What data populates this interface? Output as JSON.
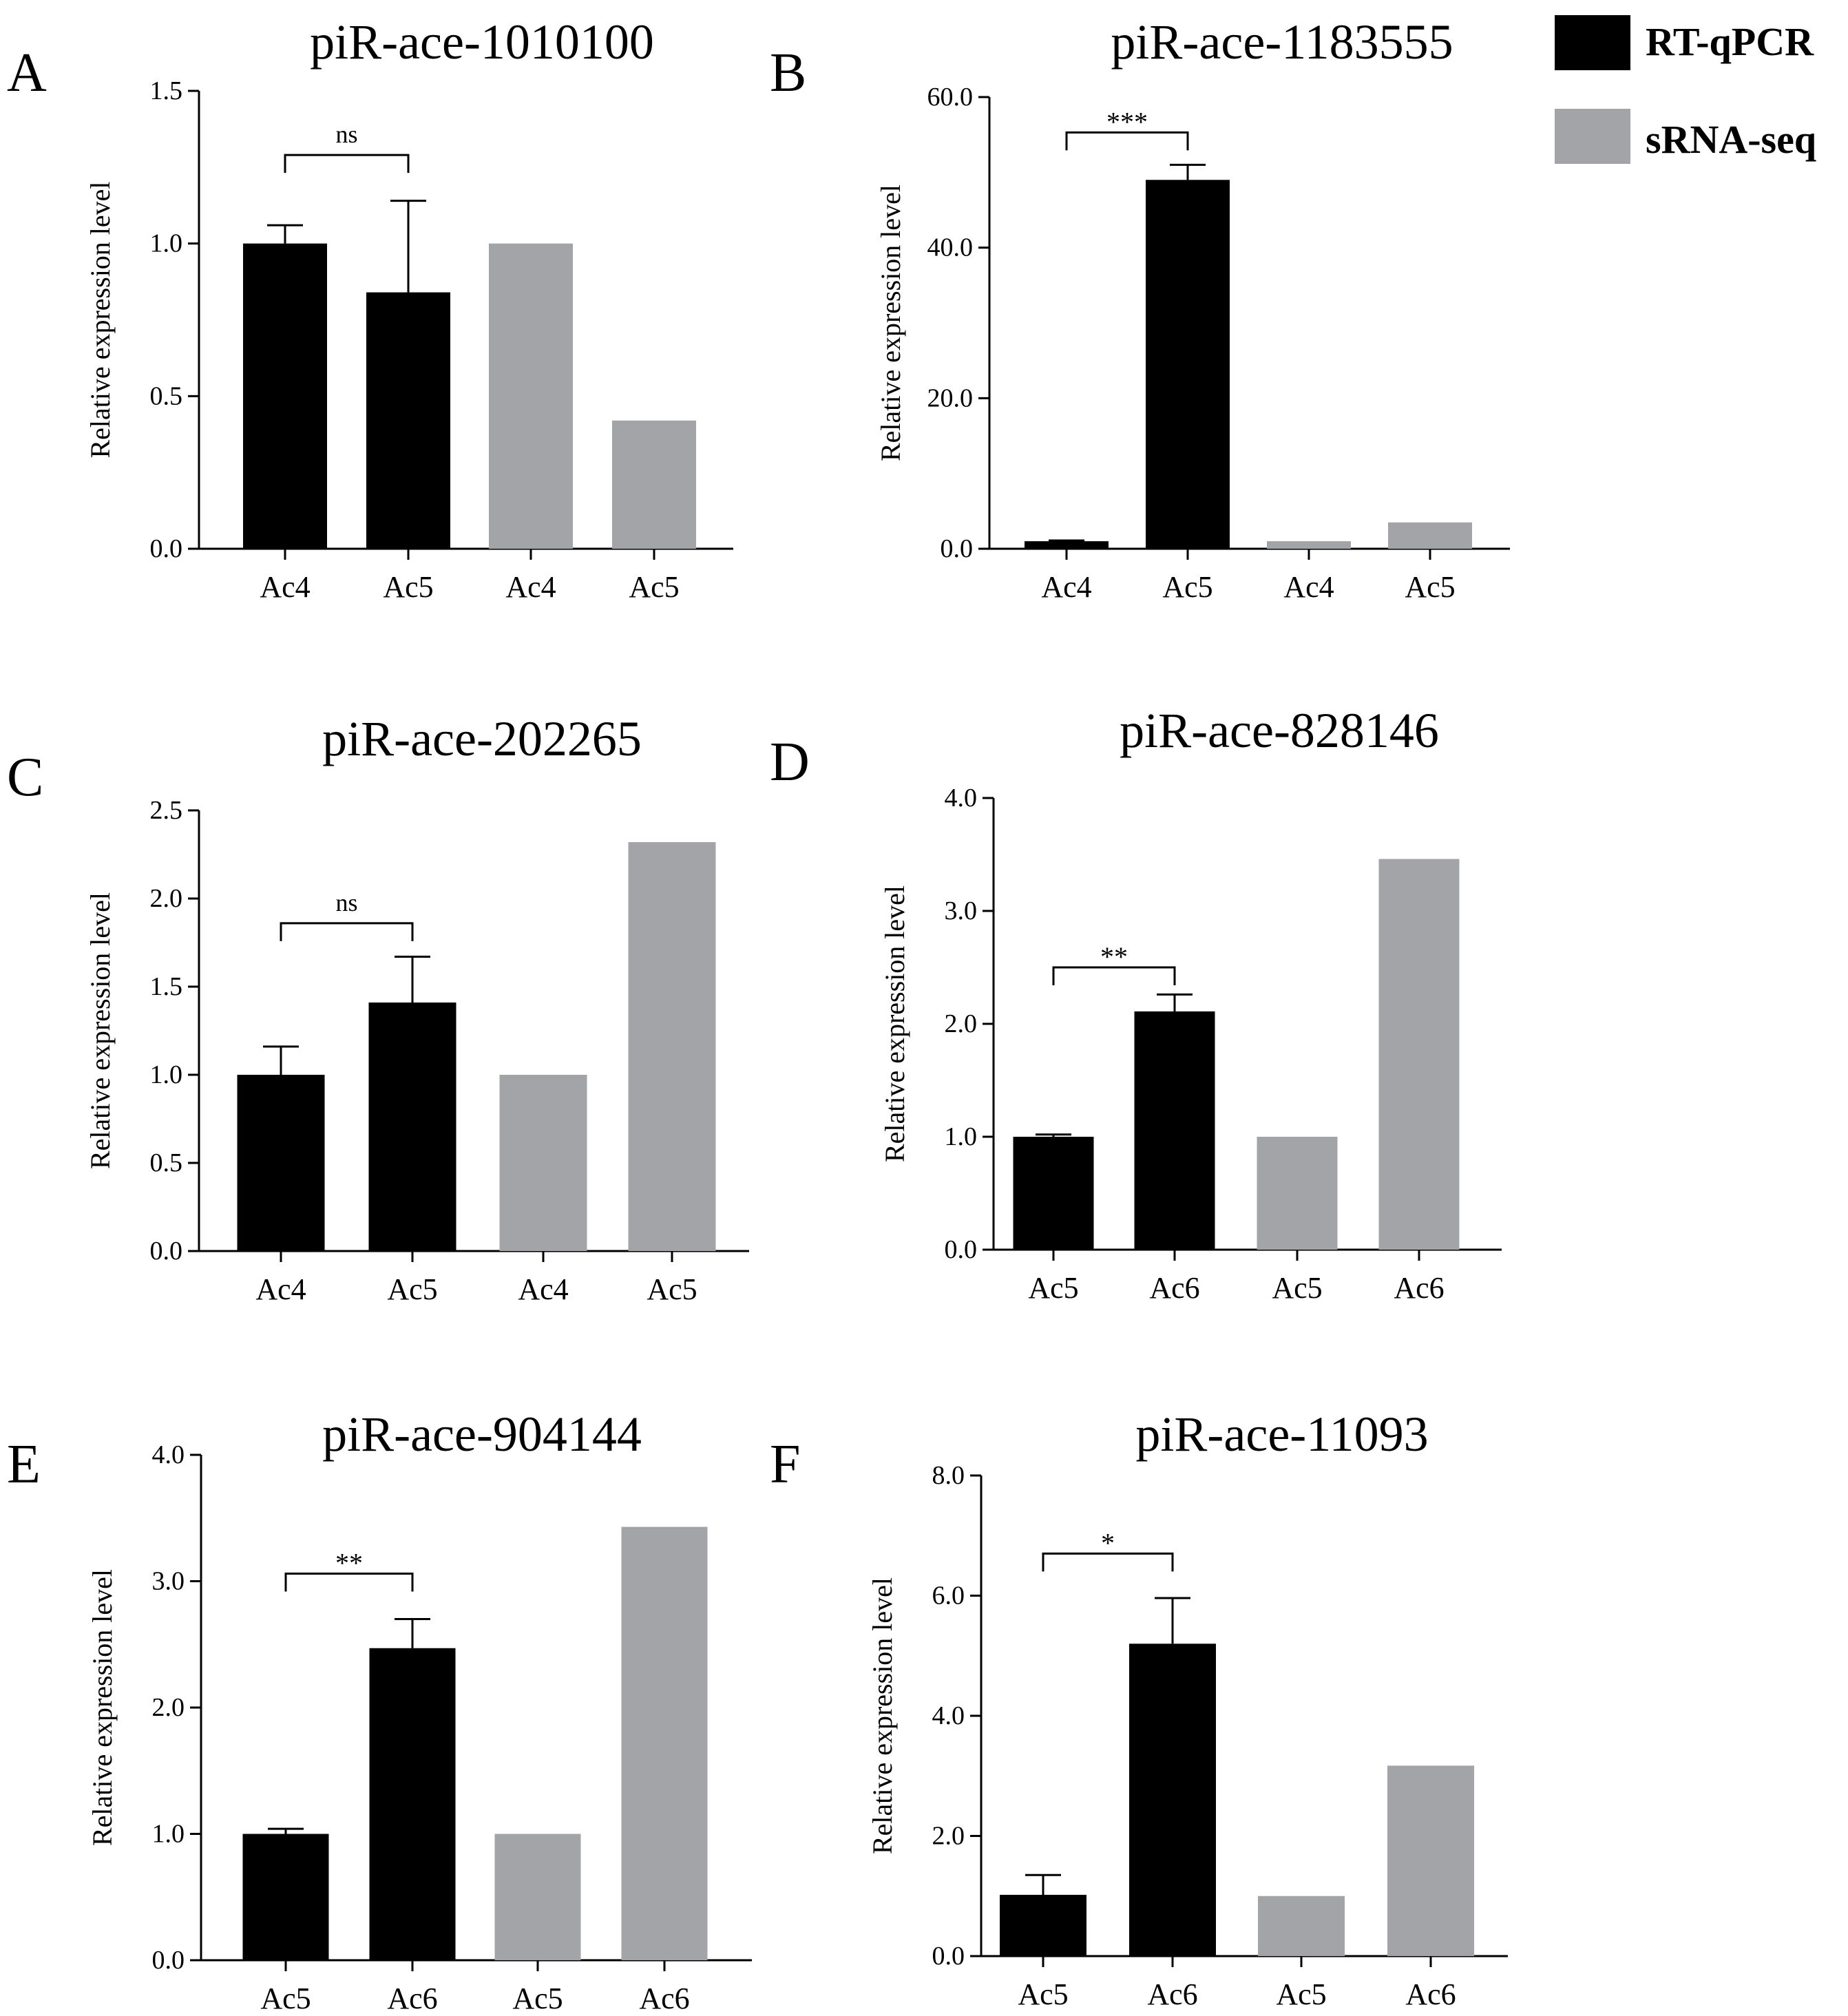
{
  "legend": {
    "items": [
      {
        "label": "RT-qPCR",
        "color": "#000000"
      },
      {
        "label": "sRNA-seq",
        "color": "#A3A4A7"
      }
    ]
  },
  "colors": {
    "rtqpcr": "#000000",
    "srnaseq": "#A3A4A7",
    "axis": "#000000"
  },
  "chart_data": [
    {
      "panel": "A",
      "type": "bar",
      "title": "piR-ace-1010100",
      "ylabel": "Relative expression level",
      "ylim": [
        0,
        1.5
      ],
      "yticks": [
        "0.0",
        "0.5",
        "1.0",
        "1.5"
      ],
      "categories": [
        "Ac4",
        "Ac5",
        "Ac4",
        "Ac5"
      ],
      "series": [
        {
          "name": "RT-qPCR",
          "values": [
            1.0,
            0.84,
            null,
            null
          ],
          "errors": [
            0.06,
            0.3,
            null,
            null
          ]
        },
        {
          "name": "sRNA-seq",
          "values": [
            null,
            null,
            1.0,
            0.42
          ]
        }
      ],
      "significance": {
        "from": 0,
        "to": 1,
        "label": "ns",
        "level": 1.29
      }
    },
    {
      "panel": "B",
      "type": "bar",
      "title": "piR-ace-1183555",
      "ylabel": "Relative expression level",
      "ylim": [
        0,
        60
      ],
      "yticks": [
        "0.0",
        "20.0",
        "40.0",
        "60.0"
      ],
      "categories": [
        "Ac4",
        "Ac5",
        "Ac4",
        "Ac5"
      ],
      "series": [
        {
          "name": "RT-qPCR",
          "values": [
            1.0,
            49.0,
            null,
            null
          ],
          "errors": [
            0.1,
            2.0,
            null,
            null
          ]
        },
        {
          "name": "sRNA-seq",
          "values": [
            null,
            null,
            1.0,
            3.5
          ]
        }
      ],
      "significance": {
        "from": 0,
        "to": 1,
        "label": "***",
        "level": 55.3
      }
    },
    {
      "panel": "C",
      "type": "bar",
      "title": "piR-ace-202265",
      "ylabel": "Relative expression level",
      "ylim": [
        0,
        2.5
      ],
      "yticks": [
        "0.0",
        "0.5",
        "1.0",
        "1.5",
        "2.0",
        "2.5"
      ],
      "categories": [
        "Ac4",
        "Ac5",
        "Ac4",
        "Ac5"
      ],
      "series": [
        {
          "name": "RT-qPCR",
          "values": [
            1.0,
            1.41,
            null,
            null
          ],
          "errors": [
            0.16,
            0.26,
            null,
            null
          ]
        },
        {
          "name": "sRNA-seq",
          "values": [
            null,
            null,
            1.0,
            2.32
          ]
        }
      ],
      "significance": {
        "from": 0,
        "to": 1,
        "label": "ns",
        "level": 1.86
      }
    },
    {
      "panel": "D",
      "type": "bar",
      "title": "piR-ace-828146",
      "ylabel": "Relative expression level",
      "ylim": [
        0,
        4.0
      ],
      "yticks": [
        "0.0",
        "1.0",
        "2.0",
        "3.0",
        "4.0"
      ],
      "categories": [
        "Ac5",
        "Ac6",
        "Ac5",
        "Ac6"
      ],
      "series": [
        {
          "name": "RT-qPCR",
          "values": [
            1.0,
            2.11,
            null,
            null
          ],
          "errors": [
            0.02,
            0.15,
            null,
            null
          ]
        },
        {
          "name": "sRNA-seq",
          "values": [
            null,
            null,
            1.0,
            3.46
          ]
        }
      ],
      "significance": {
        "from": 0,
        "to": 1,
        "label": "**",
        "level": 2.5
      }
    },
    {
      "panel": "E",
      "type": "bar",
      "title": "piR-ace-904144",
      "ylabel": "Relative expression level",
      "ylim": [
        0,
        4.0
      ],
      "yticks": [
        "0.0",
        "1.0",
        "2.0",
        "3.0",
        "4.0"
      ],
      "categories": [
        "Ac5",
        "Ac6",
        "Ac5",
        "Ac6"
      ],
      "series": [
        {
          "name": "RT-qPCR",
          "values": [
            1.0,
            2.47,
            null,
            null
          ],
          "errors": [
            0.04,
            0.23,
            null,
            null
          ]
        },
        {
          "name": "sRNA-seq",
          "values": [
            null,
            null,
            1.0,
            3.43
          ]
        }
      ],
      "significance": {
        "from": 0,
        "to": 1,
        "label": "**",
        "level": 3.06
      }
    },
    {
      "panel": "F",
      "type": "bar",
      "title": "piR-ace-11093",
      "ylabel": "Relative expression level",
      "ylim": [
        0,
        8.0
      ],
      "yticks": [
        "0.0",
        "2.0",
        "4.0",
        "6.0",
        "8.0"
      ],
      "categories": [
        "Ac5",
        "Ac6",
        "Ac5",
        "Ac6"
      ],
      "series": [
        {
          "name": "RT-qPCR",
          "values": [
            1.02,
            5.2,
            null,
            null
          ],
          "errors": [
            0.33,
            0.76,
            null,
            null
          ]
        },
        {
          "name": "sRNA-seq",
          "values": [
            null,
            null,
            1.0,
            3.17
          ]
        }
      ],
      "significance": {
        "from": 0,
        "to": 1,
        "label": "*",
        "level": 6.7
      }
    }
  ]
}
